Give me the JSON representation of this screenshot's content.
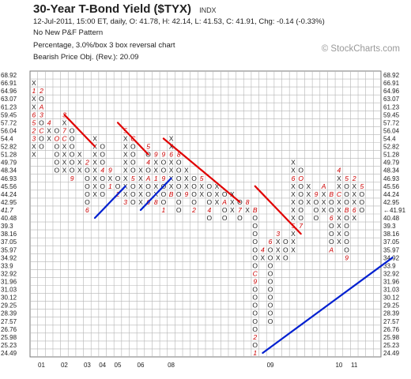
{
  "header": {
    "title": "30-Year T-Bond Yield ($TYX)",
    "exchange": "INDX",
    "line1": "12-Jul-2011, 15:00 ET, daily, O: 41.78, H: 42.14, L: 41.53, C: 41.91, Chg: -0.14 (-0.33%)",
    "line2": "No New P&F Pattern",
    "line3": "Percentage, 3.0%/box 3 box reversal chart",
    "line4": "Bearish Price Obj. (Rev.): 20.09",
    "watermark": "© StockCharts.com"
  },
  "chart_data": {
    "type": "point-and-figure",
    "box_size": "3.0% per box",
    "reversal": 3,
    "price_levels": [
      "68.92",
      "66.91",
      "64.96",
      "63.07",
      "61.23",
      "59.45",
      "57.72",
      "56.04",
      "54.4",
      "52.82",
      "51.28",
      "49.79",
      "48.34",
      "46.93",
      "45.56",
      "44.24",
      "42.95",
      "41.7",
      "40.48",
      "39.3",
      "38.16",
      "37.05",
      "35.97",
      "34.92",
      "33.9",
      "32.92",
      "31.96",
      "31.03",
      "30.12",
      "29.25",
      "28.39",
      "27.57",
      "26.76",
      "25.98",
      "25.23",
      "24.49"
    ],
    "current_level": "41.7",
    "last_price": "41.91",
    "x_labels": [
      {
        "text": "01",
        "col": 1
      },
      {
        "text": "02",
        "col": 4
      },
      {
        "text": "03",
        "col": 7
      },
      {
        "text": "04",
        "col": 9
      },
      {
        "text": "05",
        "col": 11
      },
      {
        "text": "06",
        "col": 14
      },
      {
        "text": "08",
        "col": 18
      },
      {
        "text": "09",
        "col": 31
      },
      {
        "text": "10",
        "col": 40
      },
      {
        "text": "11",
        "col": 42
      }
    ],
    "columns": [
      {
        "type": "X",
        "top": "66.91",
        "bottom": "51.28",
        "markers": {
          "64.96": "1",
          "59.45": "6",
          "57.72": "5",
          "56.04": "2",
          "54.4": "3"
        }
      },
      {
        "type": "O",
        "top": "64.96",
        "bottom": "52.82",
        "markers": {
          "64.96": "2",
          "61.23": "A",
          "59.45": "3",
          "56.04": "C"
        }
      },
      {
        "type": "X",
        "top": "57.72",
        "bottom": "54.4",
        "markers": {
          "57.72": "4"
        }
      },
      {
        "type": "O",
        "top": "56.04",
        "bottom": "48.34",
        "markers": {
          "54.4": "O",
          "46.93": "B"
        }
      },
      {
        "type": "X",
        "top": "59.45",
        "bottom": "48.34",
        "markers": {
          "59.45": "3",
          "56.04": "7",
          "54.4": "C"
        }
      },
      {
        "type": "O",
        "top": "56.04",
        "bottom": "46.93",
        "markers": {
          "46.93": "9"
        }
      },
      {
        "type": "X",
        "top": "51.28",
        "bottom": "48.34",
        "markers": {}
      },
      {
        "type": "O",
        "top": "49.79",
        "bottom": "41.7",
        "markers": {
          "49.79": "2",
          "41.7": "6"
        }
      },
      {
        "type": "X",
        "top": "54.4",
        "bottom": "44.24",
        "markers": {}
      },
      {
        "type": "O",
        "top": "52.82",
        "bottom": "44.24",
        "markers": {
          "48.34": "4"
        }
      },
      {
        "type": "X",
        "top": "48.34",
        "bottom": "45.56",
        "markers": {
          "48.34": "9",
          "45.56": "1"
        }
      },
      {
        "type": "O",
        "top": "46.93",
        "bottom": "44.24",
        "markers": {
          "44.24": "2"
        }
      },
      {
        "type": "X",
        "top": "56.04",
        "bottom": "42.95",
        "markers": {
          "56.04": "5",
          "42.95": "3"
        }
      },
      {
        "type": "O",
        "top": "54.4",
        "bottom": "42.95",
        "markers": {
          "54.4": "C",
          "46.93": "5"
        }
      },
      {
        "type": "X",
        "top": "48.34",
        "bottom": "42.95",
        "markers": {}
      },
      {
        "type": "O",
        "top": "52.82",
        "bottom": "42.95",
        "markers": {
          "52.82": "5",
          "49.79": "4",
          "46.93": "A",
          "42.95": "6"
        }
      },
      {
        "type": "X",
        "top": "51.28",
        "bottom": "42.95",
        "markers": {
          "51.28": "9",
          "46.93": "1",
          "42.95": "8"
        }
      },
      {
        "type": "O",
        "top": "51.28",
        "bottom": "41.7",
        "markers": {
          "51.28": "9",
          "46.93": "9",
          "41.7": "1"
        }
      },
      {
        "type": "X",
        "top": "54.4",
        "bottom": "44.24",
        "markers": {
          "51.28": "6",
          "44.24": "B"
        }
      },
      {
        "type": "O",
        "top": "51.28",
        "bottom": "41.7",
        "markers": {
          "51.28": "8"
        }
      },
      {
        "type": "X",
        "top": "48.34",
        "bottom": "44.24",
        "markers": {
          "44.24": "9"
        }
      },
      {
        "type": "O",
        "top": "46.93",
        "bottom": "41.7",
        "markers": {
          "41.7": "2"
        }
      },
      {
        "type": "X",
        "top": "46.93",
        "bottom": "44.24",
        "markers": {
          "46.93": "5"
        }
      },
      {
        "type": "O",
        "top": "45.56",
        "bottom": "40.48",
        "markers": {
          "41.7": "4"
        }
      },
      {
        "type": "X",
        "top": "45.56",
        "bottom": "42.95",
        "markers": {}
      },
      {
        "type": "O",
        "top": "44.24",
        "bottom": "40.48",
        "markers": {
          "42.95": "A"
        }
      },
      {
        "type": "X",
        "top": "44.24",
        "bottom": "41.7",
        "markers": {}
      },
      {
        "type": "O",
        "top": "42.95",
        "bottom": "40.48",
        "markers": {
          "41.7": "7"
        }
      },
      {
        "type": "X",
        "top": "42.95",
        "bottom": "41.7",
        "markers": {
          "42.95": "8"
        }
      },
      {
        "type": "O",
        "top": "41.7",
        "bottom": "24.49",
        "markers": {
          "41.7": "B",
          "32.92": "C",
          "31.96": "9",
          "25.98": "2",
          "24.49": "1"
        }
      },
      {
        "type": "X",
        "top": "35.97",
        "bottom": "34.92",
        "markers": {
          "35.97": "4"
        }
      },
      {
        "type": "O",
        "top": "37.05",
        "bottom": "27.57",
        "markers": {
          "37.05": "6"
        }
      },
      {
        "type": "X",
        "top": "38.16",
        "bottom": "34.92",
        "markers": {
          "38.16": "3"
        }
      },
      {
        "type": "O",
        "top": "37.05",
        "bottom": "34.92",
        "markers": {}
      },
      {
        "type": "X",
        "top": "49.79",
        "bottom": "35.97",
        "markers": {
          "46.93": "6",
          "39.3": "5"
        }
      },
      {
        "type": "O",
        "top": "48.34",
        "bottom": "39.3",
        "markers": {
          "46.93": "O",
          "39.3": "7"
        }
      },
      {
        "type": "X",
        "top": "45.56",
        "bottom": "42.95",
        "markers": {}
      },
      {
        "type": "O",
        "top": "44.24",
        "bottom": "40.48",
        "markers": {
          "44.24": "9"
        }
      },
      {
        "type": "X",
        "top": "45.56",
        "bottom": "41.7",
        "markers": {
          "45.56": "A",
          "40.48": "A"
        }
      },
      {
        "type": "O",
        "top": "44.24",
        "bottom": "35.97",
        "markers": {
          "44.24": "B",
          "40.48": "6",
          "35.97": "A"
        }
      },
      {
        "type": "X",
        "top": "48.34",
        "bottom": "37.05",
        "markers": {
          "48.34": "4",
          "44.24": "C"
        }
      },
      {
        "type": "O",
        "top": "46.93",
        "bottom": "34.92",
        "markers": {
          "46.93": "5",
          "41.7": "B",
          "34.92": "9"
        }
      },
      {
        "type": "X",
        "top": "46.93",
        "bottom": "40.48",
        "markers": {
          "46.93": "2",
          "41.7": "6"
        }
      },
      {
        "type": "O",
        "top": "45.56",
        "bottom": "41.7",
        "markers": {
          "45.56": "5"
        }
      }
    ],
    "trend_lines": [
      {
        "kind": "resistance",
        "color": "#e00000",
        "from": {
          "col": 4,
          "price": "59.45"
        },
        "to": {
          "col": 8,
          "price": "52.82"
        }
      },
      {
        "kind": "resistance",
        "color": "#e00000",
        "from": {
          "col": 11,
          "price": "57.72"
        },
        "to": {
          "col": 15,
          "price": "51.28"
        }
      },
      {
        "kind": "resistance",
        "color": "#e00000",
        "from": {
          "col": 17,
          "price": "54.4"
        },
        "to": {
          "col": 27,
          "price": "42.95"
        }
      },
      {
        "kind": "resistance",
        "color": "#e00000",
        "from": {
          "col": 29,
          "price": "45.56"
        },
        "to": {
          "col": 35,
          "price": "38.16"
        }
      },
      {
        "kind": "support",
        "color": "#0020d0",
        "from": {
          "col": 8,
          "price": "40.48"
        },
        "to": {
          "col": 12,
          "price": "45.56"
        }
      },
      {
        "kind": "support",
        "color": "#0020d0",
        "from": {
          "col": 14,
          "price": "41.7"
        },
        "to": {
          "col": 18,
          "price": "46.93"
        }
      },
      {
        "kind": "support",
        "color": "#0020d0",
        "from": {
          "col": 30,
          "price": "24.49"
        },
        "to": {
          "col": 47,
          "price": "34.92"
        }
      }
    ],
    "colors": {
      "x": "#222222",
      "o": "#222222",
      "marker": "#cc0000",
      "current": "#dd0000",
      "grid": "#b5b5b5"
    }
  }
}
